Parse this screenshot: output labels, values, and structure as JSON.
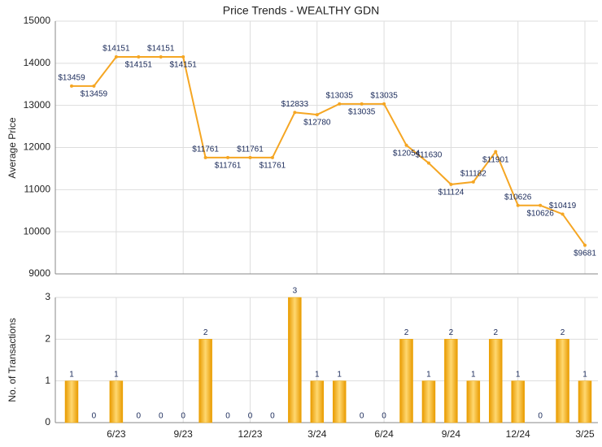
{
  "chart_data": [
    {
      "type": "line",
      "title": "Price Trends - WEALTHY GDN",
      "y_label": "Average Price",
      "values": [
        13459,
        13459,
        14151,
        14151,
        14151,
        14151,
        11761,
        11761,
        11761,
        11761,
        12833,
        12780,
        13035,
        13035,
        13035,
        12054,
        11630,
        11124,
        11182,
        11901,
        10626,
        10626,
        10419,
        9681
      ],
      "value_labels": [
        "$13459",
        "$13459",
        "$14151",
        "$14151",
        "$14151",
        "$14151",
        "$11761",
        "$11761",
        "$11761",
        "$11761",
        "$12833",
        "$12780",
        "$13035",
        "$13035",
        "$13035",
        "$12054",
        "$11630",
        "$11124",
        "$11182",
        "$11901",
        "$10626",
        "$10626",
        "$10419",
        "$9681"
      ],
      "color": "#f5a623",
      "ylim": [
        9000,
        15000
      ],
      "yticks": [
        9000,
        10000,
        11000,
        12000,
        13000,
        14000,
        15000
      ],
      "grid": true
    },
    {
      "type": "bar",
      "y_label": "No. of Transactions",
      "categories": [
        null,
        null,
        "6/23",
        null,
        null,
        "9/23",
        null,
        null,
        "12/23",
        null,
        null,
        "3/24",
        null,
        null,
        "6/24",
        null,
        null,
        "9/24",
        null,
        null,
        "12/24",
        null,
        null,
        "3/25"
      ],
      "values": [
        1,
        0,
        1,
        0,
        0,
        0,
        2,
        0,
        0,
        0,
        3,
        1,
        1,
        0,
        0,
        2,
        1,
        2,
        1,
        2,
        1,
        0,
        2,
        1
      ],
      "color": "#f0a500",
      "ylim": [
        0,
        3
      ],
      "yticks": [
        0,
        1,
        2,
        3
      ],
      "grid": true
    }
  ]
}
